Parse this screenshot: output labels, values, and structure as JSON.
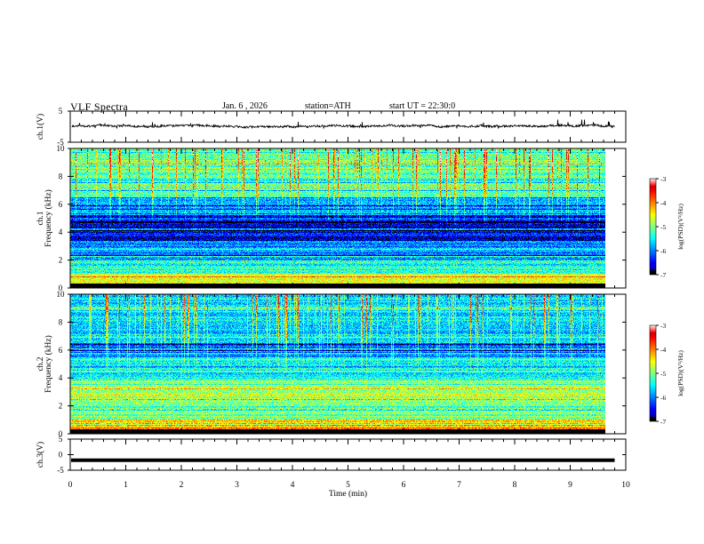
{
  "header": {
    "title": "VLF Spectra",
    "date": "Jan. 6 , 2026",
    "station": "station=ATH",
    "start": "start UT = 22:30:0"
  },
  "chart_data": [
    {
      "type": "line",
      "ylabel": "ch.1(V)",
      "ylim": [
        -5,
        5
      ],
      "y_ticks": [
        "5",
        "-5"
      ],
      "series": [
        {
          "color": "#000000",
          "baseline": 0.2,
          "noise_amp": 0.6,
          "spike_amp": 1.4
        }
      ]
    },
    {
      "type": "heatmap",
      "ylabel": "ch.1\nFrequency (kHz)",
      "ylim": [
        0,
        10
      ],
      "y_ticks": [
        "0",
        "2",
        "4",
        "6",
        "8",
        "10"
      ],
      "colorbar": {
        "label": "log(PSD)(V²/Hz)",
        "range": [
          -7,
          -3
        ],
        "ticks": [
          "-3",
          "-4",
          "-5",
          "-6",
          "-7"
        ]
      },
      "bands": [
        {
          "f": [
            0.0,
            0.3
          ],
          "level": -7.0
        },
        {
          "f": [
            0.3,
            1.0
          ],
          "level": -4.6
        },
        {
          "f": [
            1.0,
            2.0
          ],
          "level": -5.4
        },
        {
          "f": [
            2.0,
            3.4
          ],
          "level": -6.0
        },
        {
          "f": [
            3.4,
            5.2
          ],
          "level": -6.5
        },
        {
          "f": [
            5.2,
            6.5
          ],
          "level": -5.9
        },
        {
          "f": [
            6.5,
            10.0
          ],
          "level": -5.1
        }
      ]
    },
    {
      "type": "heatmap",
      "ylabel": "ch.2\nFrequency (kHz)",
      "ylim": [
        0,
        10
      ],
      "y_ticks": [
        "0",
        "2",
        "4",
        "6",
        "8",
        "10"
      ],
      "colorbar": {
        "label": "log(PSD)(V²/Hz)",
        "range": [
          -7,
          -3
        ],
        "ticks": [
          "-3",
          "-4",
          "-5",
          "-6",
          "-7"
        ]
      },
      "bands": [
        {
          "f": [
            0.0,
            0.2
          ],
          "level": -7.0
        },
        {
          "f": [
            0.2,
            1.0
          ],
          "level": -4.3
        },
        {
          "f": [
            1.0,
            2.4
          ],
          "level": -5.0
        },
        {
          "f": [
            2.4,
            3.8
          ],
          "level": -4.8
        },
        {
          "f": [
            3.8,
            5.5
          ],
          "level": -5.5
        },
        {
          "f": [
            5.5,
            6.5
          ],
          "level": -6.0
        },
        {
          "f": [
            6.5,
            10.0
          ],
          "level": -5.6
        }
      ]
    },
    {
      "type": "line",
      "ylabel": "ch.3(V)",
      "ylim": [
        -5,
        5
      ],
      "y_ticks": [
        "5",
        "0",
        "-5"
      ],
      "series": [
        {
          "color": "#000000",
          "baseline": -1.8,
          "noise_amp": 0.1,
          "spike_amp": 0.0
        }
      ]
    }
  ],
  "x_axis": {
    "label": "Time (min)",
    "range": [
      0,
      10
    ],
    "data_end": 9.8,
    "ticks": [
      "0",
      "1",
      "2",
      "3",
      "4",
      "5",
      "6",
      "7",
      "8",
      "9",
      "10"
    ]
  }
}
